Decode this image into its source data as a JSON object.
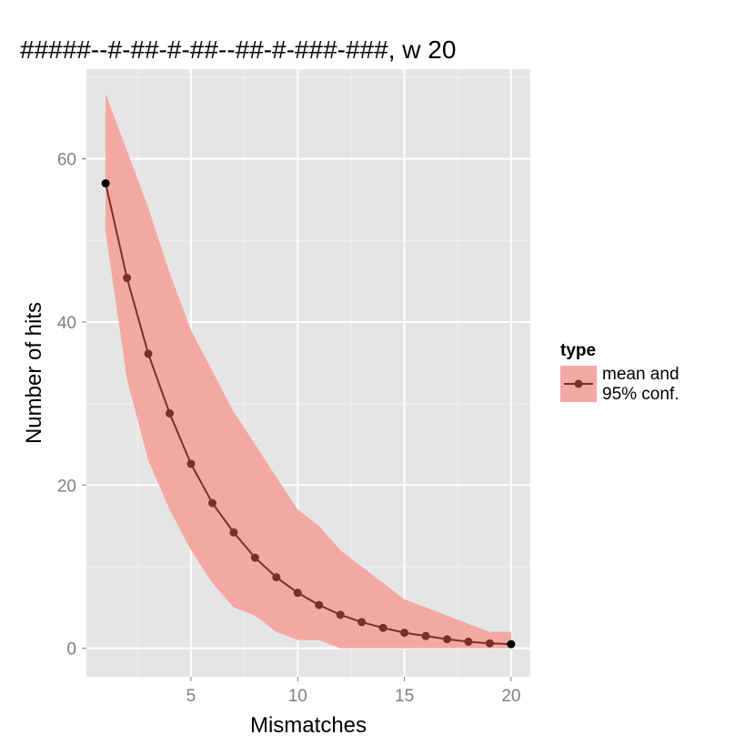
{
  "chart_data": {
    "type": "line",
    "title": "#####--#-##-#-##--##-#-###-###, w 20",
    "xlabel": "Mismatches",
    "ylabel": "Number of hits",
    "xlim": [
      0.1,
      20.9
    ],
    "ylim": [
      -3.5,
      71
    ],
    "x_ticks": [
      5,
      10,
      15,
      20
    ],
    "y_ticks": [
      0,
      20,
      40,
      60
    ],
    "grid": true,
    "legend": {
      "title": "type",
      "position": "right",
      "entries": [
        "mean and\n95% conf."
      ]
    },
    "colors": {
      "panel_bg": "#e5e5e5",
      "grid_major": "#ffffff",
      "grid_minor": "#f2f2f2",
      "ribbon": "#f4a8a4",
      "line": "#7a2f2a",
      "point": "#7a2f2a",
      "endpoint": "#000000"
    },
    "series": [
      {
        "name": "mean and\n95% conf.",
        "x": [
          1,
          2,
          3,
          4,
          5,
          6,
          7,
          8,
          9,
          10,
          11,
          12,
          13,
          14,
          15,
          16,
          17,
          18,
          19,
          20
        ],
        "mean": [
          57.0,
          45.4,
          36.1,
          28.8,
          22.6,
          17.8,
          14.2,
          11.1,
          8.7,
          6.8,
          5.3,
          4.1,
          3.2,
          2.5,
          1.9,
          1.5,
          1.1,
          0.8,
          0.6,
          0.5
        ],
        "lower": [
          51,
          33,
          23,
          17,
          12,
          8,
          5,
          4,
          2,
          1,
          1,
          0,
          0,
          0,
          0,
          0,
          0,
          0,
          0,
          0
        ],
        "upper": [
          68,
          61,
          54,
          46,
          39,
          34,
          29,
          25,
          21,
          17,
          15,
          12,
          10,
          8,
          6,
          5,
          4,
          3,
          2,
          2
        ]
      }
    ]
  }
}
